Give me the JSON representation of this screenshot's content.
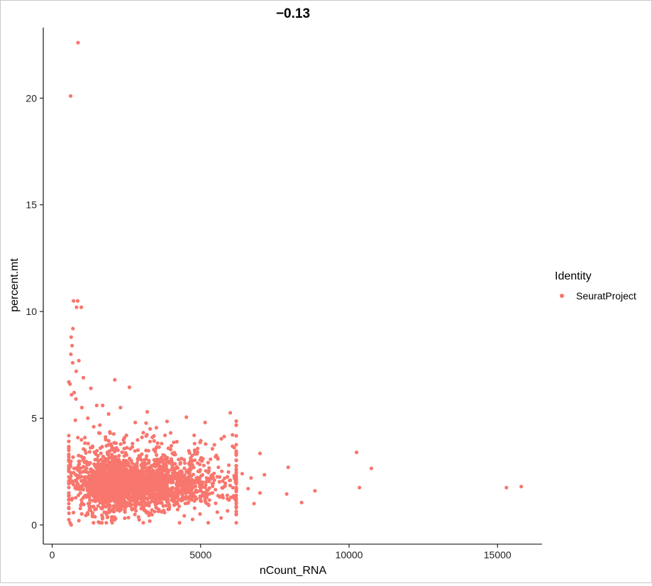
{
  "chart_data": {
    "type": "scatter",
    "title": "−0.13",
    "xlabel": "nCount_RNA",
    "ylabel": "percent.mt",
    "xlim": [
      -300,
      16500
    ],
    "ylim": [
      -0.9,
      23.3
    ],
    "xticks": [
      0,
      5000,
      10000,
      15000
    ],
    "yticks": [
      0,
      5,
      10,
      15,
      20
    ],
    "xtick_labels": [
      "0",
      "5000",
      "10000",
      "15000"
    ],
    "ytick_labels": [
      "0",
      "5",
      "10",
      "15",
      "20"
    ],
    "grid": false,
    "legend": {
      "title": "Identity",
      "placement": "right",
      "entries": [
        {
          "label": "SeuratProject",
          "color": "#F8766D"
        }
      ]
    },
    "series": [
      {
        "name": "SeuratProject",
        "color": "#F8766D",
        "points": [
          [
            870,
            22.6
          ],
          [
            620,
            20.1
          ],
          [
            720,
            10.5
          ],
          [
            860,
            10.5
          ],
          [
            820,
            10.2
          ],
          [
            980,
            10.2
          ],
          [
            700,
            9.2
          ],
          [
            640,
            8.8
          ],
          [
            670,
            8.4
          ],
          [
            630,
            8.0
          ],
          [
            690,
            7.6
          ],
          [
            900,
            7.7
          ],
          [
            810,
            7.2
          ],
          [
            560,
            6.7
          ],
          [
            600,
            6.6
          ],
          [
            1050,
            6.9
          ],
          [
            2110,
            6.8
          ],
          [
            2600,
            6.45
          ],
          [
            740,
            6.2
          ],
          [
            1300,
            6.4
          ],
          [
            1500,
            5.6
          ],
          [
            1700,
            5.6
          ],
          [
            1900,
            5.2
          ],
          [
            3200,
            5.3
          ],
          [
            5150,
            4.8
          ],
          [
            5080,
            3.1
          ],
          [
            7000,
            3.35
          ],
          [
            7150,
            2.35
          ],
          [
            7950,
            2.7
          ],
          [
            10250,
            3.4
          ],
          [
            10750,
            2.65
          ],
          [
            10350,
            1.75
          ],
          [
            8850,
            1.6
          ],
          [
            7900,
            1.45
          ],
          [
            7000,
            1.5
          ],
          [
            6800,
            1.0
          ],
          [
            8400,
            1.05
          ],
          [
            15300,
            1.75
          ],
          [
            15800,
            1.8
          ],
          [
            6700,
            2.2
          ],
          [
            6400,
            2.4
          ],
          [
            6200,
            2.6
          ],
          [
            6000,
            2.1
          ],
          [
            5800,
            1.8
          ],
          [
            5600,
            2.7
          ],
          [
            5400,
            1.5
          ],
          [
            5200,
            2.2
          ],
          [
            4900,
            2.9
          ],
          [
            4700,
            2.0
          ],
          [
            4500,
            1.6
          ],
          [
            4300,
            2.5
          ],
          [
            4100,
            3.3
          ],
          [
            3900,
            1.2
          ],
          [
            3700,
            2.7
          ],
          [
            3500,
            3.6
          ],
          [
            6100,
            1.3
          ],
          [
            6600,
            1.7
          ],
          [
            5950,
            2.8
          ],
          [
            5500,
            3.2
          ],
          [
            4800,
            3.5
          ],
          [
            4200,
            3.9
          ],
          [
            3800,
            4.2
          ],
          [
            3300,
            4.5
          ],
          [
            2800,
            4.8
          ],
          [
            1200,
            5.0
          ],
          [
            1000,
            5.5
          ],
          [
            800,
            5.9
          ],
          [
            650,
            6.1
          ],
          [
            1400,
            4.6
          ],
          [
            1600,
            4.3
          ],
          [
            1800,
            4.0
          ],
          [
            2300,
            5.5
          ],
          [
            2500,
            4.2
          ],
          [
            600,
            0.1
          ],
          [
            640,
            0.0
          ],
          [
            900,
            0.2
          ],
          [
            2000,
            0.2
          ],
          [
            1700,
            0.35
          ],
          [
            1200,
            0.5
          ]
        ],
        "dense_cloud": {
          "center": [
            2300,
            1.9
          ],
          "spread": [
            700,
            0.55
          ],
          "count": 2200
        },
        "sparse_cloud": {
          "center": [
            2100,
            2.3
          ],
          "spread": [
            1400,
            1.0
          ],
          "count": 600
        }
      }
    ]
  }
}
